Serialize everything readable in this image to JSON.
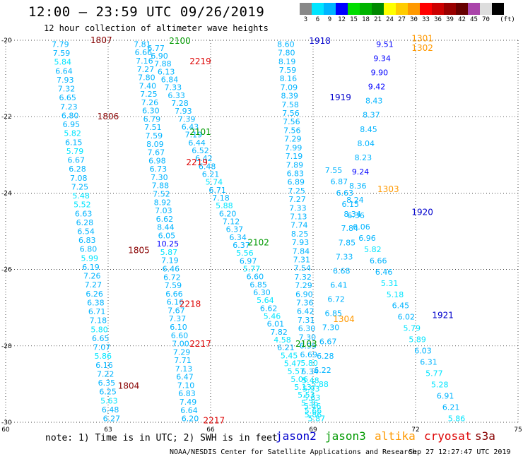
{
  "title": "12:00 – 23:59 UTC 09/26/2019",
  "subtitle": "12 hour collection of altimeter wave heights",
  "scale": {
    "unit_label": "(ft)",
    "bins": [
      {
        "label": "3",
        "color": "#888888"
      },
      {
        "label": "6",
        "color": "#00e5ff"
      },
      {
        "label": "9",
        "color": "#00b4ff"
      },
      {
        "label": "12",
        "color": "#0000ff"
      },
      {
        "label": "15",
        "color": "#00dd00"
      },
      {
        "label": "18",
        "color": "#00b400"
      },
      {
        "label": "21",
        "color": "#008800"
      },
      {
        "label": "24",
        "color": "#ffff00"
      },
      {
        "label": "27",
        "color": "#ffcc00"
      },
      {
        "label": "30",
        "color": "#ff9900"
      },
      {
        "label": "33",
        "color": "#ff0000"
      },
      {
        "label": "36",
        "color": "#cc0000"
      },
      {
        "label": "39",
        "color": "#990000"
      },
      {
        "label": "42",
        "color": "#660000"
      },
      {
        "label": "45",
        "color": "#aa44aa"
      },
      {
        "label": "70",
        "color": "#dddddd"
      },
      {
        "label": "",
        "color": "#000000"
      }
    ]
  },
  "note": "note: 1) Time is in UTC; 2) SWH is in feet",
  "footer": "NOAA/NESDIS Center for Satellite Applications and Research",
  "timestamp": "Sep 27 12:27:47 UTC 2019",
  "legend": [
    {
      "label": "jason2",
      "color": "#0000cc"
    },
    {
      "label": "jason3",
      "color": "#009900"
    },
    {
      "label": "altika",
      "color": "#ff9900"
    },
    {
      "label": "cryosat",
      "color": "#dd0000"
    },
    {
      "label": "s3a",
      "color": "#880000"
    }
  ],
  "chart_data": {
    "type": "scatter",
    "xlim": [
      60,
      75
    ],
    "ylim": [
      -30,
      -20
    ],
    "x_ticks": [
      "60",
      "63",
      "66",
      "69",
      "72",
      "75"
    ],
    "y_ticks": [
      "-20",
      "-22",
      "-24",
      "-26",
      "-28",
      "-30"
    ],
    "grid": true,
    "colors": {
      "low": "#00e5ff",
      "mid": "#00b4ff",
      "high": "#0000ff"
    },
    "tracks": [
      {
        "x0": 61.6,
        "y0": -20.1,
        "x1": 63.1,
        "y1": -29.9,
        "values": [
          "7.79",
          "7.59",
          "5.84",
          "6.64",
          "7.93",
          "7.32",
          "6.65",
          "7.23",
          "6.80",
          "6.95",
          "5.82",
          "6.15",
          "5.79",
          "6.67",
          "6.28",
          "7.08",
          "7.25",
          "5.48",
          "5.52",
          "6.63",
          "6.28",
          "6.54",
          "6.83",
          "6.80",
          "5.99",
          "6.19",
          "7.26",
          "7.27",
          "6.26",
          "6.38",
          "6.71",
          "7.18",
          "5.80",
          "6.65",
          "7.07",
          "5.86",
          "6.16",
          "7.22",
          "6.35",
          "6.25",
          "5.63",
          "6.48",
          "6.27"
        ]
      },
      {
        "x0": 64.0,
        "y0": -20.1,
        "x1": 65.4,
        "y1": -29.9,
        "values": [
          "7.81",
          "6.66",
          "7.16",
          "7.27",
          "7.80",
          "7.40",
          "7.25",
          "7.26",
          "6.30",
          "6.79",
          "7.51",
          "7.59",
          "8.09",
          "7.67",
          "6.98",
          "6.73",
          "7.30",
          "7.88",
          "7.52",
          "8.92",
          "7.03",
          "6.62",
          "8.44",
          "6.05",
          "10.25",
          "5.87",
          "7.19",
          "6.46",
          "6.72",
          "7.59",
          "6.66",
          "6.16",
          "7.67",
          "7.37",
          "6.10",
          "6.60",
          "7.00",
          "7.29",
          "7.71",
          "7.13",
          "6.47",
          "7.10",
          "6.83",
          "7.49",
          "6.64",
          "6.20"
        ]
      },
      {
        "x0": 64.4,
        "y0": -20.2,
        "x1": 69.1,
        "y1": -29.9,
        "values": [
          "6.77",
          "6.90",
          "7.88",
          "6.13",
          "6.84",
          "7.33",
          "6.33",
          "7.28",
          "7.93",
          "7.39",
          "6.43",
          "7.19",
          "6.44",
          "6.52",
          "6.42",
          "6.48",
          "6.21",
          "5.74",
          "6.71",
          "7.18",
          "5.88",
          "6.20",
          "7.12",
          "6.37",
          "6.34",
          "6.37",
          "5.56",
          "6.97",
          "5.77",
          "6.60",
          "6.85",
          "6.30",
          "5.64",
          "6.62",
          "5.46",
          "6.01",
          "7.82",
          "4.58",
          "6.21",
          "5.45",
          "5.47",
          "5.57",
          "5.06",
          "5.13",
          "5.53",
          "5.36",
          "5.66",
          "5.87"
        ]
      },
      {
        "x0": 68.2,
        "y0": -20.1,
        "x1": 69.0,
        "y1": -29.8,
        "values": [
          "8.60",
          "7.80",
          "8.19",
          "7.59",
          "8.16",
          "7.09",
          "8.39",
          "7.58",
          "7.56",
          "7.56",
          "7.56",
          "7.29",
          "7.99",
          "7.19",
          "7.89",
          "6.83",
          "6.89",
          "7.25",
          "7.27",
          "7.33",
          "7.13",
          "7.74",
          "8.25",
          "7.93",
          "7.84",
          "7.31",
          "7.54",
          "7.32",
          "7.29",
          "6.90",
          "7.36",
          "6.42",
          "7.31",
          "6.30",
          "7.30",
          "6.95",
          "6.69",
          "5.80",
          "6.34",
          "5.48",
          "5.93",
          "5.63",
          "5.46",
          "5.86"
        ]
      },
      {
        "x0": 71.1,
        "y0": -20.1,
        "x1": 69.2,
        "y1": -29.0,
        "values": [
          "9.51",
          "9.34",
          "9.90",
          "9.42",
          "8.43",
          "8.37",
          "8.45",
          "8.04",
          "8.23",
          "9.24",
          "8.36",
          "8.24",
          "8.34",
          "7.84",
          "7.85",
          "7.33",
          "6.68",
          "6.41",
          "6.72",
          "6.85",
          "7.30",
          "6.67",
          "6.28",
          "6.22",
          "5.88"
        ]
      },
      {
        "x0": 69.6,
        "y0": -23.4,
        "x1": 73.2,
        "y1": -29.9,
        "values": [
          "7.55",
          "6.87",
          "6.63",
          "6.15",
          "6.36",
          "6.06",
          "6.96",
          "5.82",
          "6.66",
          "6.46",
          "5.31",
          "5.18",
          "6.45",
          "6.02",
          "5.79",
          "5.89",
          "6.03",
          "6.31",
          "5.77",
          "5.28",
          "6.91",
          "6.21",
          "5.86"
        ]
      }
    ],
    "labels": [
      {
        "text": "1807",
        "x": 62.8,
        "y": -20.0,
        "color": "#880000"
      },
      {
        "text": "2100",
        "x": 65.1,
        "y": -20.02,
        "color": "#009900"
      },
      {
        "text": "2219",
        "x": 65.7,
        "y": -20.55,
        "color": "#dd0000"
      },
      {
        "text": "1918",
        "x": 69.2,
        "y": -20.02,
        "color": "#0000cc"
      },
      {
        "text": "1301",
        "x": 72.2,
        "y": -19.95,
        "color": "#ff9900"
      },
      {
        "text": "1302",
        "x": 72.2,
        "y": -20.2,
        "color": "#ff9900"
      },
      {
        "text": "1919",
        "x": 69.8,
        "y": -21.5,
        "color": "#0000cc"
      },
      {
        "text": "1806",
        "x": 63.0,
        "y": -22.0,
        "color": "#880000"
      },
      {
        "text": "2101",
        "x": 65.7,
        "y": -22.4,
        "color": "#009900"
      },
      {
        "text": "2219",
        "x": 65.6,
        "y": -23.2,
        "color": "#dd0000"
      },
      {
        "text": "1303",
        "x": 71.2,
        "y": -23.9,
        "color": "#ff9900"
      },
      {
        "text": "1920",
        "x": 72.2,
        "y": -24.5,
        "color": "#0000cc"
      },
      {
        "text": "2102",
        "x": 67.4,
        "y": -25.3,
        "color": "#009900"
      },
      {
        "text": "1805",
        "x": 63.9,
        "y": -25.5,
        "color": "#880000"
      },
      {
        "text": "2218",
        "x": 65.4,
        "y": -26.9,
        "color": "#dd0000"
      },
      {
        "text": "1304",
        "x": 69.9,
        "y": -27.3,
        "color": "#ff9900"
      },
      {
        "text": "1921",
        "x": 72.8,
        "y": -27.2,
        "color": "#0000cc"
      },
      {
        "text": "2217",
        "x": 65.7,
        "y": -27.95,
        "color": "#dd0000"
      },
      {
        "text": "2103",
        "x": 68.8,
        "y": -27.95,
        "color": "#009900"
      },
      {
        "text": "1804",
        "x": 63.6,
        "y": -29.05,
        "color": "#880000"
      },
      {
        "text": "2217",
        "x": 66.1,
        "y": -29.95,
        "color": "#dd0000"
      }
    ]
  }
}
